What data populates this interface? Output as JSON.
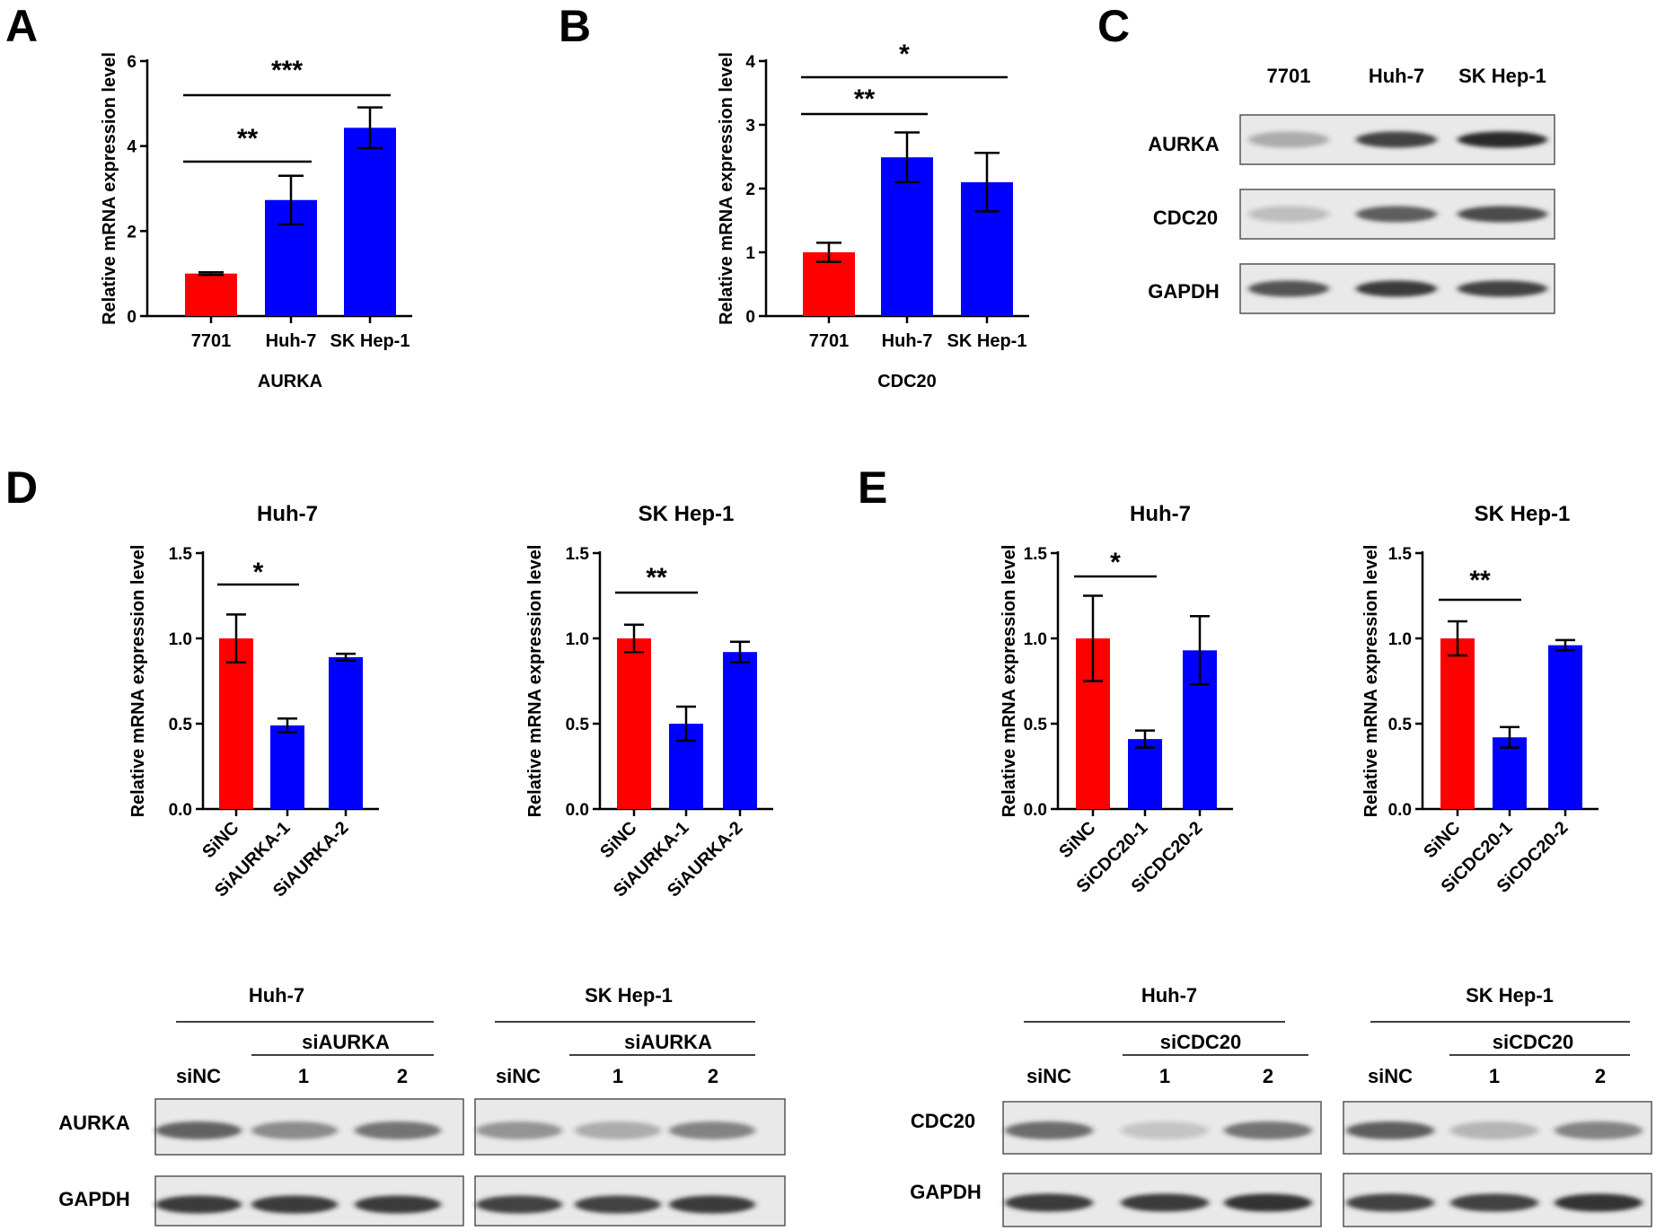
{
  "colors": {
    "control": "#ff0000",
    "treated": "#0000ff",
    "axis": "#000000",
    "blot_bg": "#e9e9e9",
    "band": "#2b2b2b"
  },
  "panels": [
    "A",
    "B",
    "C",
    "D",
    "E"
  ],
  "chart_data": [
    {
      "id": "A",
      "type": "bar",
      "categories": [
        "7701",
        "Huh-7",
        "SK Hep-1"
      ],
      "values": [
        1.0,
        2.73,
        4.43
      ],
      "errors": [
        0.03,
        0.57,
        0.48
      ],
      "title": "",
      "xlabel": "AURKA",
      "ylabel": "Relative mRNA expression level",
      "ylim": [
        0,
        6
      ],
      "yticks": [
        "0",
        "2",
        "4",
        "6"
      ],
      "significance": [
        {
          "from": 0,
          "to": 1,
          "label": "**"
        },
        {
          "from": 0,
          "to": 2,
          "label": "***"
        }
      ]
    },
    {
      "id": "B",
      "type": "bar",
      "categories": [
        "7701",
        "Huh-7",
        "SK Hep-1"
      ],
      "values": [
        1.0,
        2.49,
        2.1
      ],
      "errors": [
        0.15,
        0.39,
        0.46
      ],
      "title": "",
      "xlabel": "CDC20",
      "ylabel": "Relative mRNA expression level",
      "ylim": [
        0,
        4
      ],
      "yticks": [
        "0",
        "1",
        "2",
        "3",
        "4"
      ],
      "significance": [
        {
          "from": 0,
          "to": 1,
          "label": "**"
        },
        {
          "from": 0,
          "to": 2,
          "label": "*"
        }
      ]
    },
    {
      "id": "D1",
      "type": "bar",
      "categories": [
        "SiNC",
        "SiAURKA-1",
        "SiAURKA-2"
      ],
      "values": [
        1.0,
        0.49,
        0.89
      ],
      "errors": [
        0.14,
        0.04,
        0.02
      ],
      "title": "Huh-7",
      "xlabel": "",
      "ylabel": "Relative mRNA expression level",
      "ylim": [
        0,
        1.5
      ],
      "yticks": [
        "0.0",
        "0.5",
        "1.0",
        "1.5"
      ],
      "significance": [
        {
          "from": 0,
          "to": 1,
          "label": "*"
        }
      ]
    },
    {
      "id": "D2",
      "type": "bar",
      "categories": [
        "SiNC",
        "SiAURKA-1",
        "SiAURKA-2"
      ],
      "values": [
        1.0,
        0.5,
        0.92
      ],
      "errors": [
        0.08,
        0.1,
        0.06
      ],
      "title": "SK Hep-1",
      "xlabel": "",
      "ylabel": "Relative mRNA expression level",
      "ylim": [
        0,
        1.5
      ],
      "yticks": [
        "0.0",
        "0.5",
        "1.0",
        "1.5"
      ],
      "significance": [
        {
          "from": 0,
          "to": 1,
          "label": "**"
        }
      ]
    },
    {
      "id": "E1",
      "type": "bar",
      "categories": [
        "SiNC",
        "SiCDC20-1",
        "SiCDC20-2"
      ],
      "values": [
        1.0,
        0.41,
        0.93
      ],
      "errors": [
        0.25,
        0.05,
        0.2
      ],
      "title": "Huh-7",
      "xlabel": "",
      "ylabel": "Relative mRNA expression level",
      "ylim": [
        0,
        1.5
      ],
      "yticks": [
        "0.0",
        "0.5",
        "1.0",
        "1.5"
      ],
      "significance": [
        {
          "from": 0,
          "to": 1,
          "label": "*"
        }
      ]
    },
    {
      "id": "E2",
      "type": "bar",
      "categories": [
        "SiNC",
        "SiCDC20-1",
        "SiCDC20-2"
      ],
      "values": [
        1.0,
        0.42,
        0.96
      ],
      "errors": [
        0.1,
        0.06,
        0.03
      ],
      "title": "SK Hep-1",
      "xlabel": "",
      "ylabel": "Relative mRNA expression level",
      "ylim": [
        0,
        1.5
      ],
      "yticks": [
        "0.0",
        "0.5",
        "1.0",
        "1.5"
      ],
      "significance": [
        {
          "from": 0,
          "to": 1,
          "label": "**"
        }
      ]
    }
  ],
  "blots": {
    "C": {
      "lanes": [
        "7701",
        "Huh-7",
        "SK Hep-1"
      ],
      "rows": [
        {
          "label": "AURKA",
          "intensity": [
            0.2,
            0.85,
            1.0
          ]
        },
        {
          "label": "CDC20",
          "intensity": [
            0.08,
            0.7,
            0.8
          ]
        },
        {
          "label": "GAPDH",
          "intensity": [
            0.75,
            0.9,
            0.85
          ]
        }
      ]
    },
    "D": {
      "groups": [
        {
          "cell": "Huh-7",
          "treatment": "siAURKA",
          "lanes": [
            "siNC",
            "1",
            "2"
          ]
        },
        {
          "cell": "SK Hep-1",
          "treatment": "siAURKA",
          "lanes": [
            "siNC",
            "1",
            "2"
          ]
        }
      ],
      "rows": [
        {
          "label": "AURKA",
          "intensity": [
            [
              0.65,
              0.4,
              0.55
            ],
            [
              0.35,
              0.2,
              0.45
            ]
          ]
        },
        {
          "label": "GAPDH",
          "intensity": [
            [
              0.9,
              0.9,
              0.9
            ],
            [
              0.85,
              0.85,
              0.9
            ]
          ]
        }
      ]
    },
    "E": {
      "groups": [
        {
          "cell": "Huh-7",
          "treatment": "siCDC20",
          "lanes": [
            "siNC",
            "1",
            "2"
          ]
        },
        {
          "cell": "SK Hep-1",
          "treatment": "siCDC20",
          "lanes": [
            "siNC",
            "1",
            "2"
          ]
        }
      ],
      "rows": [
        {
          "label": "CDC20",
          "intensity": [
            [
              0.6,
              0.05,
              0.55
            ],
            [
              0.7,
              0.15,
              0.45
            ]
          ]
        },
        {
          "label": "GAPDH",
          "intensity": [
            [
              0.9,
              0.9,
              0.95
            ],
            [
              0.85,
              0.85,
              0.95
            ]
          ]
        }
      ]
    }
  }
}
